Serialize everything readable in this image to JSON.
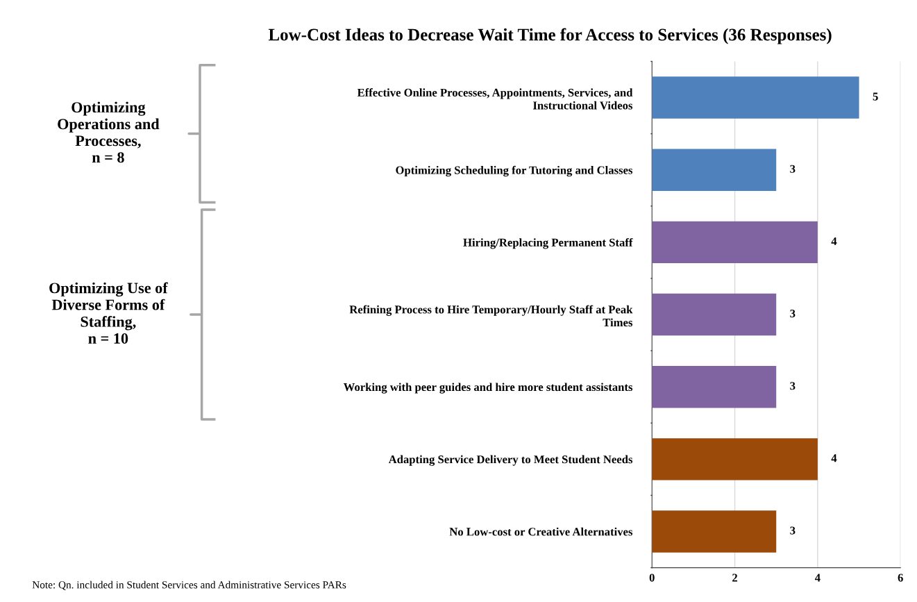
{
  "chart_data": {
    "type": "bar",
    "orientation": "horizontal",
    "title": "Low-Cost Ideas to Decrease Wait Time for Access to Services (36 Responses)",
    "categories": [
      "Effective Online Processes, Appointments, Services, and\nInstructional Videos",
      "Optimizing Scheduling for Tutoring and Classes",
      "Hiring/Replacing Permanent Staff",
      "Refining Process to Hire Temporary/Hourly Staff at Peak\nTimes",
      "Working with peer guides and hire more student assistants",
      "Adapting Service Delivery to Meet Student Needs",
      "No Low-cost or Creative Alternatives"
    ],
    "values": [
      5,
      3,
      4,
      3,
      3,
      4,
      3
    ],
    "colors": [
      "#4f81bd",
      "#4f81bd",
      "#8064a2",
      "#8064a2",
      "#8064a2",
      "#9c4a0a",
      "#9c4a0a"
    ],
    "xlim": [
      0,
      6
    ],
    "xticks": [
      0,
      2,
      4,
      6
    ],
    "grid": "x",
    "data_labels": true,
    "legend": false,
    "annotations": [
      "Note: Qn. included in Student Services and Administrative Services PARs",
      "Optimizing\nOperations and\nProcesses,\nn = 8",
      "Optimizing Use of\nDiverse Forms of\nStaffing,\nn = 10"
    ]
  }
}
